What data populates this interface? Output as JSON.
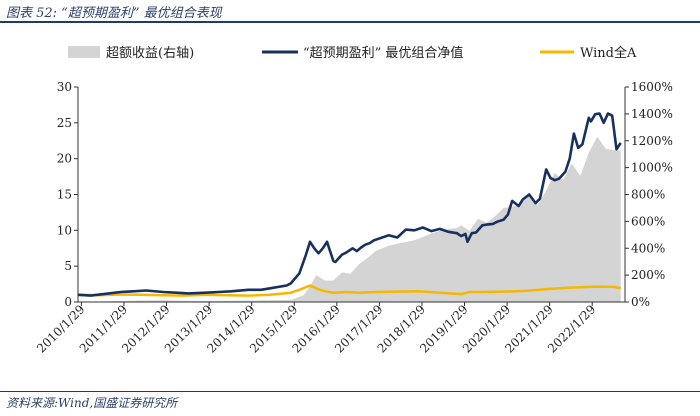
{
  "header": {
    "title": "图表 52:  “超预期盈利” 最优组合表现"
  },
  "footer": {
    "source": "资料来源:Wind,国盛证券研究所"
  },
  "colors": {
    "area": "#d4d4d4",
    "portfolio": "#17305f",
    "wind": "#f5b800",
    "rule": "#1f3a6e"
  },
  "chart_data": {
    "type": "line",
    "title": "",
    "xlabel": "",
    "ylabel": "",
    "x_tick_labels": [
      "2010/1/29",
      "2011/1/29",
      "2012/1/29",
      "2013/1/29",
      "2014/1/29",
      "2015/1/29",
      "2016/1/29",
      "2017/1/29",
      "2018/1/29",
      "2019/1/29",
      "2020/1/29",
      "2021/1/29",
      "2022/1/29"
    ],
    "left_axis": {
      "ylim": [
        0,
        30
      ],
      "ticks": [
        "0",
        "5",
        "10",
        "15",
        "20",
        "25",
        "30"
      ]
    },
    "right_axis": {
      "ylim": [
        0,
        16
      ],
      "ticks": [
        "0%",
        "200%",
        "400%",
        "600%",
        "800%",
        "1000%",
        "1200%",
        "1400%",
        "1600%"
      ]
    },
    "legend": {
      "position": "top"
    },
    "series": [
      {
        "name": "超额收益(右轴)",
        "type": "area",
        "axis": "right",
        "x": [
          2010.0,
          2010.5,
          2011.0,
          2011.5,
          2012.0,
          2012.5,
          2013.0,
          2013.5,
          2014.0,
          2014.5,
          2015.0,
          2015.3,
          2015.45,
          2015.6,
          2015.8,
          2016.0,
          2016.2,
          2016.4,
          2016.6,
          2016.8,
          2017.0,
          2017.3,
          2017.6,
          2017.9,
          2018.0,
          2018.3,
          2018.6,
          2018.9,
          2019.0,
          2019.2,
          2019.4,
          2019.6,
          2019.8,
          2020.0,
          2020.2,
          2020.4,
          2020.6,
          2020.8,
          2021.0,
          2021.2,
          2021.4,
          2021.6,
          2021.8,
          2022.0,
          2022.2,
          2022.4,
          2022.6,
          2022.75
        ],
        "values": [
          0.03,
          0.04,
          0.08,
          0.12,
          0.13,
          0.1,
          0.08,
          0.09,
          0.11,
          0.14,
          0.16,
          0.5,
          1.2,
          2.0,
          1.6,
          1.6,
          2.2,
          2.1,
          2.8,
          3.3,
          3.8,
          4.2,
          4.4,
          4.6,
          4.7,
          5.1,
          5.4,
          5.5,
          5.7,
          5.3,
          6.2,
          5.9,
          6.4,
          7.0,
          7.1,
          7.3,
          7.9,
          7.2,
          8.3,
          9.6,
          9.1,
          10.3,
          9.4,
          11.1,
          12.3,
          11.4,
          11.3,
          11.3
        ]
      },
      {
        "name": "“超预期盈利” 最优组合净值",
        "type": "line",
        "axis": "left",
        "x": [
          2010.0,
          2010.3,
          2010.6,
          2011.0,
          2011.3,
          2011.6,
          2012.0,
          2012.3,
          2012.6,
          2013.0,
          2013.3,
          2013.6,
          2014.0,
          2014.3,
          2014.6,
          2014.9,
          2015.0,
          2015.2,
          2015.35,
          2015.45,
          2015.55,
          2015.65,
          2015.75,
          2015.85,
          2016.0,
          2016.05,
          2016.2,
          2016.3,
          2016.45,
          2016.55,
          2016.65,
          2016.75,
          2016.85,
          2016.95,
          2017.1,
          2017.3,
          2017.5,
          2017.7,
          2017.9,
          2018.1,
          2018.3,
          2018.5,
          2018.7,
          2018.9,
          2019.0,
          2019.1,
          2019.15,
          2019.25,
          2019.35,
          2019.5,
          2019.6,
          2019.75,
          2019.85,
          2020.0,
          2020.1,
          2020.2,
          2020.35,
          2020.45,
          2020.6,
          2020.75,
          2020.85,
          2021.0,
          2021.1,
          2021.2,
          2021.3,
          2021.45,
          2021.55,
          2021.65,
          2021.75,
          2021.85,
          2022.0,
          2022.05,
          2022.15,
          2022.25,
          2022.35,
          2022.45,
          2022.55,
          2022.65,
          2022.75
        ],
        "values": [
          1.0,
          0.9,
          1.1,
          1.4,
          1.5,
          1.6,
          1.4,
          1.3,
          1.2,
          1.3,
          1.4,
          1.5,
          1.7,
          1.7,
          2.0,
          2.3,
          2.6,
          4.0,
          6.5,
          8.4,
          7.5,
          6.8,
          7.5,
          8.4,
          5.7,
          5.6,
          6.6,
          6.9,
          7.5,
          7.1,
          7.6,
          8.0,
          8.2,
          8.6,
          8.9,
          9.3,
          9.0,
          10.1,
          10.0,
          10.4,
          9.9,
          10.2,
          9.8,
          9.6,
          9.2,
          9.5,
          8.4,
          9.6,
          9.7,
          10.7,
          10.8,
          10.9,
          11.2,
          11.5,
          12.2,
          14.1,
          13.4,
          14.3,
          15.0,
          13.8,
          14.4,
          18.5,
          17.3,
          17.0,
          17.2,
          18.2,
          20.0,
          23.5,
          21.5,
          22.0,
          25.7,
          25.2,
          26.2,
          26.3,
          25.0,
          26.3,
          26.0,
          21.3,
          22.2
        ]
      },
      {
        "name": "Wind全A",
        "type": "line",
        "axis": "left",
        "x": [
          2010.0,
          2010.5,
          2011.0,
          2011.5,
          2012.0,
          2012.5,
          2013.0,
          2013.5,
          2014.0,
          2014.5,
          2015.0,
          2015.2,
          2015.45,
          2015.6,
          2015.8,
          2016.0,
          2016.3,
          2016.6,
          2017.0,
          2017.5,
          2018.0,
          2018.5,
          2019.0,
          2019.2,
          2019.5,
          2020.0,
          2020.5,
          2021.0,
          2021.5,
          2022.0,
          2022.3,
          2022.6,
          2022.75
        ],
        "values": [
          1.0,
          0.95,
          1.05,
          1.0,
          0.95,
          0.9,
          1.0,
          0.95,
          0.9,
          1.0,
          1.3,
          1.7,
          2.3,
          1.9,
          1.5,
          1.3,
          1.4,
          1.3,
          1.4,
          1.45,
          1.5,
          1.3,
          1.1,
          1.4,
          1.4,
          1.45,
          1.55,
          1.8,
          2.0,
          2.1,
          2.15,
          2.1,
          1.9
        ]
      }
    ]
  }
}
